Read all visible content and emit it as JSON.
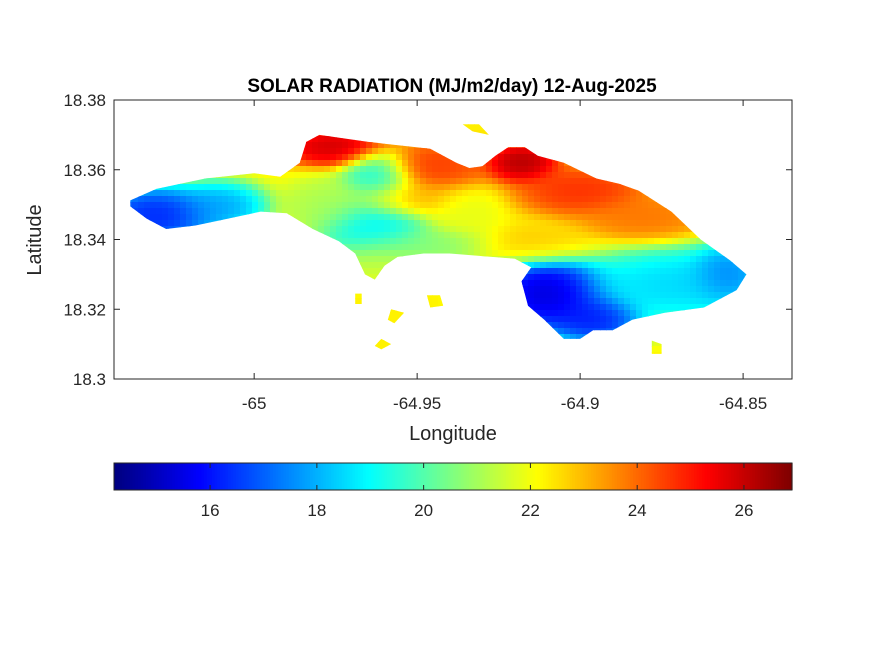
{
  "chart_data": {
    "type": "heatmap",
    "title": "SOLAR RADIATION (MJ/m2/day) 12-Aug-2025",
    "xlabel": "Longitude",
    "ylabel": "Latitude",
    "xlim": [
      -65.043,
      -64.835
    ],
    "ylim": [
      18.3,
      18.38
    ],
    "x_ticks": [
      -65,
      -64.95,
      -64.9,
      -64.85
    ],
    "x_tick_labels": [
      "-65",
      "-64.95",
      "-64.9",
      "-64.85"
    ],
    "y_ticks": [
      18.3,
      18.32,
      18.34,
      18.36,
      18.38
    ],
    "y_tick_labels": [
      "18.3",
      "18.32",
      "18.34",
      "18.36",
      "18.38"
    ],
    "grid": false,
    "colormap": "jet",
    "colorbar": {
      "orientation": "horizontal",
      "location": "below",
      "range": [
        14.2,
        26.9
      ],
      "ticks": [
        16,
        18,
        20,
        22,
        24,
        26
      ],
      "tick_labels": [
        "16",
        "18",
        "20",
        "22",
        "24",
        "26"
      ]
    },
    "land_outline": [
      [
        -65.038,
        18.3512
      ],
      [
        -65.03,
        18.3545
      ],
      [
        -65.015,
        18.3575
      ],
      [
        -65.0,
        18.359
      ],
      [
        -64.992,
        18.358
      ],
      [
        -64.986,
        18.362
      ],
      [
        -64.984,
        18.368
      ],
      [
        -64.98,
        18.37
      ],
      [
        -64.965,
        18.368
      ],
      [
        -64.946,
        18.366
      ],
      [
        -64.938,
        18.362
      ],
      [
        -64.934,
        18.3605
      ],
      [
        -64.93,
        18.361
      ],
      [
        -64.926,
        18.364
      ],
      [
        -64.922,
        18.3665
      ],
      [
        -64.917,
        18.3665
      ],
      [
        -64.913,
        18.364
      ],
      [
        -64.905,
        18.362
      ],
      [
        -64.895,
        18.3575
      ],
      [
        -64.888,
        18.356
      ],
      [
        -64.882,
        18.354
      ],
      [
        -64.872,
        18.348
      ],
      [
        -64.863,
        18.34
      ],
      [
        -64.854,
        18.334
      ],
      [
        -64.849,
        18.33
      ],
      [
        -64.852,
        18.3255
      ],
      [
        -64.862,
        18.3205
      ],
      [
        -64.874,
        18.319
      ],
      [
        -64.884,
        18.317
      ],
      [
        -64.89,
        18.314
      ],
      [
        -64.896,
        18.314
      ],
      [
        -64.9,
        18.3115
      ],
      [
        -64.905,
        18.3115
      ],
      [
        -64.911,
        18.317
      ],
      [
        -64.916,
        18.321
      ],
      [
        -64.918,
        18.328
      ],
      [
        -64.915,
        18.332
      ],
      [
        -64.92,
        18.3345
      ],
      [
        -64.94,
        18.336
      ],
      [
        -64.948,
        18.336
      ],
      [
        -64.956,
        18.335
      ],
      [
        -64.96,
        18.3325
      ],
      [
        -64.963,
        18.3285
      ],
      [
        -64.966,
        18.33
      ],
      [
        -64.969,
        18.336
      ],
      [
        -64.974,
        18.3395
      ],
      [
        -64.982,
        18.343
      ],
      [
        -64.99,
        18.3475
      ],
      [
        -64.998,
        18.348
      ],
      [
        -65.008,
        18.346
      ],
      [
        -65.018,
        18.344
      ],
      [
        -65.027,
        18.343
      ],
      [
        -65.033,
        18.346
      ],
      [
        -65.038,
        18.3495
      ]
    ],
    "islets": [
      [
        [
          -64.947,
          18.324
        ],
        [
          -64.943,
          18.324
        ],
        [
          -64.942,
          18.321
        ],
        [
          -64.946,
          18.3205
        ]
      ],
      [
        [
          -64.958,
          18.32
        ],
        [
          -64.954,
          18.319
        ],
        [
          -64.957,
          18.316
        ],
        [
          -64.959,
          18.317
        ]
      ],
      [
        [
          -64.961,
          18.3115
        ],
        [
          -64.958,
          18.31
        ],
        [
          -64.961,
          18.3085
        ],
        [
          -64.963,
          18.3095
        ]
      ],
      [
        [
          -64.969,
          18.3245
        ],
        [
          -64.967,
          18.3245
        ],
        [
          -64.967,
          18.3215
        ],
        [
          -64.969,
          18.3215
        ]
      ],
      [
        [
          -64.878,
          18.311
        ],
        [
          -64.875,
          18.31
        ],
        [
          -64.875,
          18.3072
        ],
        [
          -64.878,
          18.3072
        ]
      ],
      [
        [
          -64.936,
          18.373
        ],
        [
          -64.931,
          18.373
        ],
        [
          -64.928,
          18.37
        ],
        [
          -64.933,
          18.371
        ]
      ]
    ],
    "field_base": 22.3,
    "field_centers": [
      [
        -65.03,
        18.347,
        15.5,
        0.014,
        0.006
      ],
      [
        -65.01,
        18.3495,
        17.5,
        0.01,
        0.005
      ],
      [
        -64.964,
        18.343,
        18.5,
        0.012,
        0.007
      ],
      [
        -64.962,
        18.358,
        18.8,
        0.008,
        0.006
      ],
      [
        -64.91,
        18.3245,
        14.4,
        0.013,
        0.008
      ],
      [
        -64.895,
        18.317,
        15.5,
        0.01,
        0.005
      ],
      [
        -64.87,
        18.327,
        18.0,
        0.022,
        0.008
      ],
      [
        -64.855,
        18.33,
        16.8,
        0.008,
        0.006
      ],
      [
        -64.945,
        18.338,
        20.5,
        0.016,
        0.004
      ],
      [
        -64.962,
        18.334,
        21.5,
        0.01,
        0.005
      ],
      [
        -64.978,
        18.35,
        21.0,
        0.01,
        0.006
      ],
      [
        -64.975,
        18.3665,
        26.3,
        0.012,
        0.004
      ],
      [
        -64.945,
        18.361,
        24.8,
        0.012,
        0.005
      ],
      [
        -64.918,
        18.362,
        26.7,
        0.008,
        0.004
      ],
      [
        -64.9,
        18.354,
        25.0,
        0.014,
        0.005
      ],
      [
        -64.88,
        18.346,
        24.0,
        0.014,
        0.005
      ],
      [
        -64.935,
        18.348,
        21.8,
        0.008,
        0.005
      ],
      [
        -64.953,
        18.352,
        23.2,
        0.012,
        0.004
      ],
      [
        -64.915,
        18.338,
        23.0,
        0.014,
        0.004
      ]
    ]
  }
}
